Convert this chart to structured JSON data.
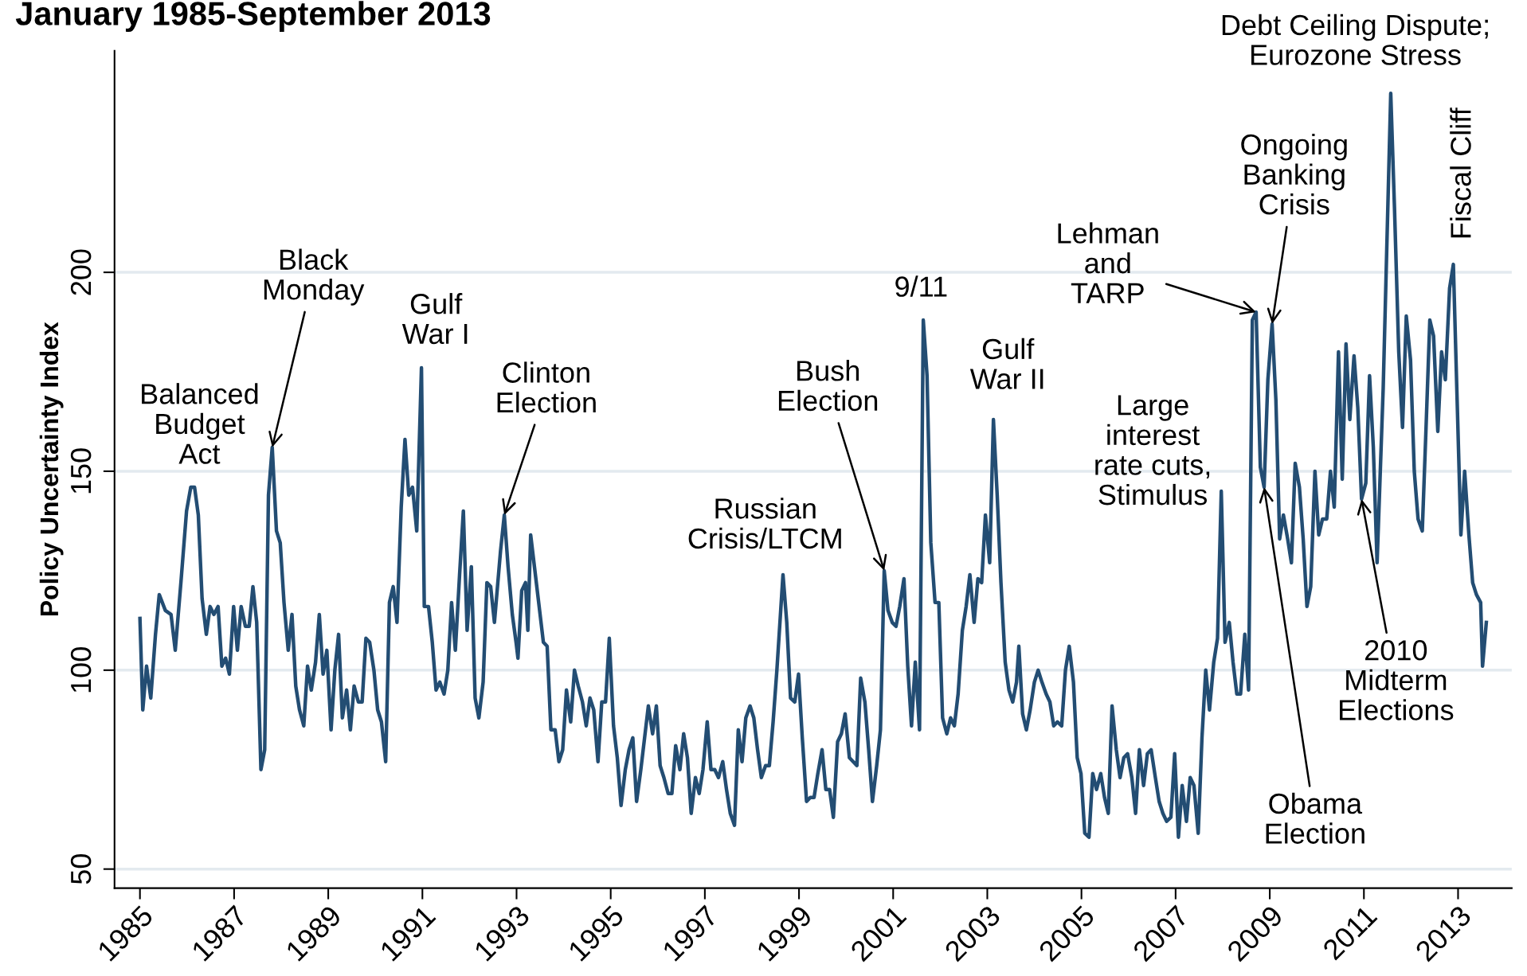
{
  "chart_data": {
    "type": "line",
    "title": "January 1985-September 2013",
    "ylabel": "Policy Uncertainty Index",
    "xlim": [
      1984.46,
      2014.14
    ],
    "ylim": [
      45.2,
      255.7
    ],
    "xticks": [
      1985,
      1987,
      1989,
      1991,
      1993,
      1995,
      1997,
      1999,
      2001,
      2003,
      2005,
      2007,
      2009,
      2011,
      2013
    ],
    "yticks": [
      50,
      100,
      150,
      200
    ],
    "grid": "y",
    "legend": false,
    "marker": "none",
    "line_style": "solid",
    "annotations": [
      {
        "text": "Balanced\nBudget\nAct",
        "x": 1986.1,
        "y": 146
      },
      {
        "text": "Black\nMonday",
        "x": 1987.81,
        "y": 156
      },
      {
        "text": "Gulf\nWar I",
        "x": 1990.98,
        "y": 176
      },
      {
        "text": "Clinton\nElection",
        "x": 1992.74,
        "y": 139
      },
      {
        "text": "Russian\nCrisis/LTCM",
        "x": 1998.66,
        "y": 124
      },
      {
        "text": "Bush\nElection",
        "x": 2000.81,
        "y": 125
      },
      {
        "text": "9/11",
        "x": 2001.64,
        "y": 188
      },
      {
        "text": "Gulf\nWar II",
        "x": 2003.13,
        "y": 163
      },
      {
        "text": "Lehman\nand\nTARP",
        "x": 2008.71,
        "y": 190
      },
      {
        "text": "Ongoing\nBanking\nCrisis",
        "x": 2009.05,
        "y": 187
      },
      {
        "text": "Large\ninterest\nrate cuts,\nStimulus",
        "x": 2007.97,
        "y": 145
      },
      {
        "text": "Obama\nElection",
        "x": 2008.88,
        "y": 146
      },
      {
        "text": "2010\nMidterm\nElections",
        "x": 2010.95,
        "y": 143
      },
      {
        "text": "Debt Ceiling Dispute;\nEurozone Stress",
        "x": 2011.57,
        "y": 245
      },
      {
        "text": "Fiscal Cliff",
        "x": 2012.9,
        "y": 202
      }
    ],
    "series": [
      {
        "color": "#234d73",
        "x": [
          1985.0,
          1985.06,
          1985.14,
          1985.23,
          1985.33,
          1985.41,
          1985.54,
          1985.66,
          1985.75,
          1985.87,
          1985.99,
          1986.08,
          1986.16,
          1986.24,
          1986.32,
          1986.41,
          1986.49,
          1986.57,
          1986.66,
          1986.74,
          1986.82,
          1986.9,
          1986.99,
          1987.07,
          1987.15,
          1987.24,
          1987.32,
          1987.4,
          1987.48,
          1987.57,
          1987.65,
          1987.73,
          1987.81,
          1987.9,
          1987.98,
          1988.06,
          1988.15,
          1988.23,
          1988.31,
          1988.39,
          1988.48,
          1988.56,
          1988.64,
          1988.73,
          1988.81,
          1988.89,
          1988.97,
          1989.06,
          1989.14,
          1989.22,
          1989.3,
          1989.39,
          1989.47,
          1989.55,
          1989.64,
          1989.72,
          1989.8,
          1989.88,
          1989.97,
          1990.05,
          1990.13,
          1990.22,
          1990.3,
          1990.38,
          1990.46,
          1990.55,
          1990.63,
          1990.71,
          1990.79,
          1990.88,
          1990.98,
          1991.04,
          1991.13,
          1991.21,
          1991.29,
          1991.37,
          1991.46,
          1991.54,
          1991.62,
          1991.7,
          1991.79,
          1991.87,
          1991.95,
          1992.04,
          1992.12,
          1992.2,
          1992.29,
          1992.37,
          1992.45,
          1992.53,
          1992.66,
          1992.74,
          1992.82,
          1992.91,
          1992.99,
          1993.03,
          1993.11,
          1993.19,
          1993.24,
          1993.3,
          1993.4,
          1993.48,
          1993.57,
          1993.65,
          1993.73,
          1993.82,
          1993.9,
          1993.98,
          1994.06,
          1994.15,
          1994.23,
          1994.31,
          1994.4,
          1994.48,
          1994.56,
          1994.64,
          1994.73,
          1994.81,
          1994.89,
          1994.97,
          1995.06,
          1995.14,
          1995.22,
          1995.31,
          1995.39,
          1995.47,
          1995.55,
          1995.64,
          1995.72,
          1995.8,
          1995.89,
          1995.97,
          1996.05,
          1996.13,
          1996.22,
          1996.3,
          1996.38,
          1996.47,
          1996.55,
          1996.63,
          1996.71,
          1996.8,
          1996.88,
          1996.96,
          1997.05,
          1997.13,
          1997.21,
          1997.29,
          1997.38,
          1997.46,
          1997.54,
          1997.63,
          1997.71,
          1997.79,
          1997.87,
          1997.96,
          1998.04,
          1998.12,
          1998.2,
          1998.29,
          1998.37,
          1998.45,
          1998.53,
          1998.66,
          1998.74,
          1998.82,
          1998.91,
          1998.99,
          1999.07,
          1999.16,
          1999.24,
          1999.32,
          1999.4,
          1999.49,
          1999.57,
          1999.65,
          1999.73,
          1999.82,
          1999.9,
          1999.98,
          2000.07,
          2000.15,
          2000.23,
          2000.31,
          2000.4,
          2000.48,
          2000.56,
          2000.65,
          2000.73,
          2000.81,
          2000.89,
          2000.98,
          2001.06,
          2001.14,
          2001.23,
          2001.31,
          2001.39,
          2001.47,
          2001.56,
          2001.64,
          2001.72,
          2001.8,
          2001.89,
          2001.97,
          2002.05,
          2002.14,
          2002.22,
          2002.3,
          2002.38,
          2002.47,
          2002.55,
          2002.63,
          2002.72,
          2002.8,
          2002.88,
          2002.96,
          2003.05,
          2003.13,
          2003.21,
          2003.29,
          2003.38,
          2003.46,
          2003.54,
          2003.62,
          2003.67,
          2003.75,
          2003.83,
          2003.91,
          2004.0,
          2004.08,
          2004.16,
          2004.25,
          2004.33,
          2004.41,
          2004.49,
          2004.58,
          2004.66,
          2004.74,
          2004.83,
          2004.91,
          2004.99,
          2005.07,
          2005.16,
          2005.24,
          2005.32,
          2005.41,
          2005.49,
          2005.57,
          2005.65,
          2005.74,
          2005.82,
          2005.9,
          2005.98,
          2006.07,
          2006.15,
          2006.23,
          2006.32,
          2006.4,
          2006.48,
          2006.57,
          2006.65,
          2006.73,
          2006.81,
          2006.9,
          2006.98,
          2007.06,
          2007.14,
          2007.23,
          2007.31,
          2007.39,
          2007.48,
          2007.56,
          2007.64,
          2007.72,
          2007.81,
          2007.89,
          2007.97,
          2008.05,
          2008.14,
          2008.22,
          2008.3,
          2008.38,
          2008.47,
          2008.55,
          2008.63,
          2008.71,
          2008.8,
          2008.88,
          2008.96,
          2009.05,
          2009.13,
          2009.21,
          2009.29,
          2009.38,
          2009.46,
          2009.54,
          2009.63,
          2009.71,
          2009.79,
          2009.87,
          2009.96,
          2010.04,
          2010.12,
          2010.21,
          2010.29,
          2010.37,
          2010.46,
          2010.54,
          2010.62,
          2010.7,
          2010.79,
          2010.87,
          2010.95,
          2011.04,
          2011.12,
          2011.2,
          2011.28,
          2011.41,
          2011.57,
          2011.65,
          2011.74,
          2011.82,
          2011.9,
          2011.99,
          2012.07,
          2012.15,
          2012.24,
          2012.32,
          2012.4,
          2012.48,
          2012.57,
          2012.65,
          2012.73,
          2012.82,
          2012.9,
          2012.98,
          2013.06,
          2013.14,
          2013.23,
          2013.31,
          2013.39,
          2013.48,
          2013.52,
          2013.6
        ],
        "values": [
          113,
          90,
          101,
          93,
          109,
          119,
          115,
          114,
          105,
          122,
          140,
          146,
          146,
          139,
          118,
          109,
          116,
          114,
          116,
          101,
          103,
          99,
          116,
          105,
          116,
          111,
          111,
          121,
          112,
          75,
          80,
          144,
          156,
          135,
          132,
          117,
          105,
          114,
          96,
          90,
          86,
          101,
          95,
          102,
          114,
          99,
          105,
          85,
          100,
          109,
          88,
          95,
          85,
          96,
          92,
          92,
          108,
          107,
          100,
          90,
          87,
          77,
          117,
          121,
          112,
          141,
          158,
          144,
          146,
          135,
          176,
          116,
          116,
          107,
          95,
          97,
          94,
          100,
          117,
          105,
          124,
          140,
          110,
          126,
          93,
          88,
          97,
          122,
          121,
          112,
          130,
          139,
          126,
          114,
          107,
          103,
          120,
          122,
          110,
          134,
          124,
          116,
          107,
          106,
          85,
          85,
          77,
          80,
          95,
          87,
          100,
          96,
          92,
          86,
          93,
          90,
          77,
          92,
          92,
          108,
          86,
          78,
          66,
          75,
          80,
          83,
          67,
          75,
          83,
          91,
          84,
          91,
          76,
          73,
          69,
          69,
          81,
          75,
          84,
          78,
          64,
          73,
          69,
          75,
          87,
          75,
          75,
          73,
          77,
          70,
          64,
          61,
          85,
          77,
          88,
          91,
          88,
          80,
          73,
          76,
          76,
          87,
          100,
          124,
          112,
          93,
          92,
          99,
          83,
          67,
          68,
          68,
          74,
          80,
          70,
          70,
          63,
          82,
          84,
          89,
          78,
          77,
          76,
          98,
          92,
          80,
          67,
          76,
          85,
          125,
          115,
          112,
          111,
          116,
          123,
          101,
          86,
          102,
          85,
          188,
          174,
          132,
          117,
          117,
          88,
          84,
          88,
          86,
          94,
          110,
          116,
          124,
          112,
          123,
          122,
          139,
          127,
          163,
          144,
          122,
          102,
          95,
          92,
          97,
          106,
          89,
          85,
          90,
          97,
          100,
          97,
          94,
          92,
          86,
          87,
          86,
          100,
          106,
          97,
          78,
          74,
          59,
          58,
          74,
          70,
          74,
          68,
          64,
          91,
          80,
          73,
          78,
          79,
          73,
          64,
          80,
          71,
          79,
          80,
          73,
          67,
          64,
          62,
          63,
          79,
          58,
          71,
          62,
          73,
          71,
          59,
          83,
          100,
          90,
          102,
          108,
          145,
          107,
          112,
          102,
          94,
          94,
          109,
          95,
          188,
          190,
          151,
          146,
          173,
          187,
          168,
          133,
          139,
          133,
          127,
          152,
          146,
          133,
          116,
          121,
          150,
          134,
          138,
          138,
          150,
          141,
          180,
          148,
          182,
          163,
          179,
          166,
          143,
          147,
          174,
          156,
          127,
          171,
          245,
          216,
          180,
          161,
          189,
          178,
          150,
          138,
          135,
          161,
          188,
          184,
          160,
          180,
          173,
          196,
          202,
          168,
          134,
          150,
          134,
          122,
          119,
          117,
          101,
          112
        ]
      }
    ]
  }
}
